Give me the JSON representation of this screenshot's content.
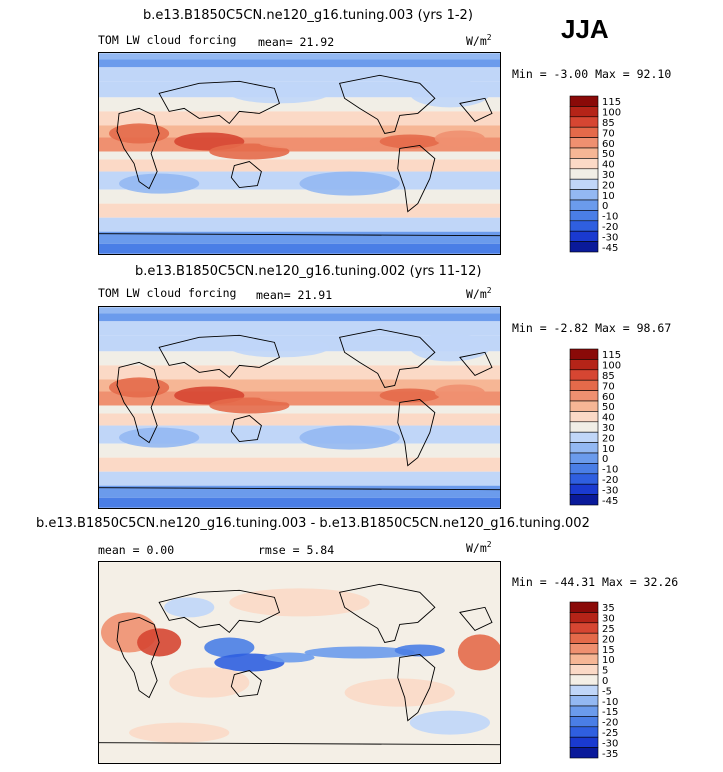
{
  "season": "JJA",
  "colors": {
    "base": [
      "#0a1a9a",
      "#1a3ad0",
      "#2f5fe0",
      "#4a7ee6",
      "#6b9bec",
      "#93b8f2",
      "#c0d6f8",
      "#f1eee6",
      "#fbd9c6",
      "#f6b695",
      "#ef9070",
      "#e46a4a",
      "#d64632",
      "#b52418",
      "#8a0a08"
    ],
    "diff": [
      "#0a1a9a",
      "#1a3ad0",
      "#2f5fe0",
      "#4a7ee6",
      "#6b9bec",
      "#93b8f2",
      "#c0d6f8",
      "#f4efe6",
      "#fbd9c6",
      "#f6b695",
      "#ef9070",
      "#e46a4a",
      "#d64632",
      "#b52418",
      "#8a0a08"
    ]
  },
  "panels": [
    {
      "title": "b.e13.B1850C5CN.ne120_g16.tuning.003 (yrs 1-2)",
      "left_label": "TOM LW cloud forcing",
      "stat1": "mean=  21.92",
      "stat2": "",
      "units": "W/m",
      "units_sup": "2",
      "minmax": "Min =   -3.00 Max =  92.10",
      "legend": [
        "115",
        "100",
        "85",
        "70",
        "60",
        "50",
        "40",
        "30",
        "20",
        "10",
        "0",
        "-10",
        "-20",
        "-30",
        "-45"
      ]
    },
    {
      "title": "b.e13.B1850C5CN.ne120_g16.tuning.002 (yrs 11-12)",
      "left_label": "TOM LW cloud forcing",
      "stat1": "mean=  21.91",
      "stat2": "",
      "units": "W/m",
      "units_sup": "2",
      "minmax": "Min =   -2.82 Max =  98.67",
      "legend": [
        "115",
        "100",
        "85",
        "70",
        "60",
        "50",
        "40",
        "30",
        "20",
        "10",
        "0",
        "-10",
        "-20",
        "-30",
        "-45"
      ]
    },
    {
      "title": "b.e13.B1850C5CN.ne120_g16.tuning.003 - b.e13.B1850C5CN.ne120_g16.tuning.002",
      "left_label": "mean =   0.00",
      "stat1": "",
      "stat2": "rmse =   5.84",
      "units": "W/m",
      "units_sup": "2",
      "minmax": "Min = -44.31 Max =  32.26",
      "legend": [
        "35",
        "30",
        "25",
        "20",
        "15",
        "10",
        "5",
        "0",
        "-5",
        "-10",
        "-15",
        "-20",
        "-25",
        "-30",
        "-35"
      ]
    }
  ],
  "chart_data": [
    {
      "type": "heatmap",
      "title": "b.e13.B1850C5CN.ne120_g16.tuning.003 (yrs 1-2)",
      "variable": "TOM LW cloud forcing",
      "units": "W/m2",
      "mean": 21.92,
      "min": -3.0,
      "max": 92.1,
      "contour_levels": [
        -45,
        -30,
        -20,
        -10,
        0,
        10,
        20,
        30,
        40,
        50,
        60,
        70,
        85,
        100,
        115
      ]
    },
    {
      "type": "heatmap",
      "title": "b.e13.B1850C5CN.ne120_g16.tuning.002 (yrs 11-12)",
      "variable": "TOM LW cloud forcing",
      "units": "W/m2",
      "mean": 21.91,
      "min": -2.82,
      "max": 98.67,
      "contour_levels": [
        -45,
        -30,
        -20,
        -10,
        0,
        10,
        20,
        30,
        40,
        50,
        60,
        70,
        85,
        100,
        115
      ]
    },
    {
      "type": "heatmap",
      "title": "b.e13.B1850C5CN.ne120_g16.tuning.003 - b.e13.B1850C5CN.ne120_g16.tuning.002",
      "units": "W/m2",
      "mean": 0.0,
      "rmse": 5.84,
      "min": -44.31,
      "max": 32.26,
      "contour_levels": [
        -35,
        -30,
        -25,
        -20,
        -15,
        -10,
        -5,
        0,
        5,
        10,
        15,
        20,
        25,
        30,
        35
      ]
    }
  ]
}
